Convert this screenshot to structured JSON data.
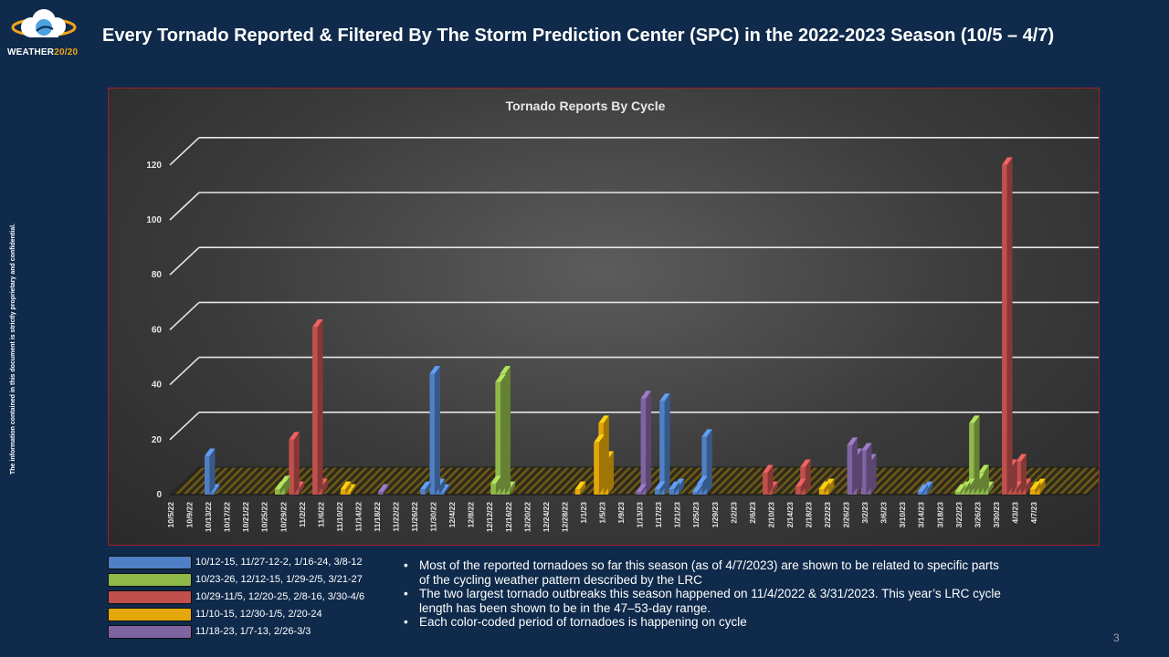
{
  "header": {
    "logo_word": "WEATHER",
    "logo_year": "20/20",
    "title": "Every Tornado Reported & Filtered By The Storm Prediction Center (SPC) in the 2022-2023 Season (10/5 – 4/7)"
  },
  "side_note": "The information contained in this document is strictly proprietary and confidential.",
  "colors": {
    "blue": "#4f7fc4",
    "green": "#8fb84a",
    "red": "#c0504d",
    "gold": "#e3a70b",
    "purple": "#8064a2"
  },
  "chart_data": {
    "type": "bar",
    "title": "Tornado Reports By Cycle",
    "ylim": [
      0,
      120
    ],
    "yticks": [
      0,
      20,
      40,
      60,
      80,
      100,
      120
    ],
    "grid": true,
    "x_labels": [
      "10/5/22",
      "10/9/22",
      "10/13/22",
      "10/17/22",
      "10/21/22",
      "10/25/22",
      "10/29/22",
      "11/2/22",
      "11/6/22",
      "11/10/22",
      "11/14/22",
      "11/18/22",
      "11/22/22",
      "11/26/22",
      "11/30/22",
      "12/4/22",
      "12/8/22",
      "12/12/22",
      "12/16/22",
      "12/20/22",
      "12/24/22",
      "12/28/22",
      "1/1/23",
      "1/5/23",
      "1/9/23",
      "1/13/23",
      "1/17/23",
      "1/21/23",
      "1/25/23",
      "1/29/23",
      "2/2/23",
      "2/6/23",
      "2/10/23",
      "2/14/23",
      "2/18/23",
      "2/22/23",
      "2/26/23",
      "3/2/23",
      "3/6/23",
      "3/10/23",
      "3/14/23",
      "3/18/23",
      "3/22/23",
      "3/26/23",
      "3/30/23",
      "4/3/23",
      "4/7/23"
    ],
    "series": [
      {
        "color_key": "blue",
        "points": [
          [
            "10/12/22",
            14
          ],
          [
            "10/13/22",
            1
          ],
          [
            "11/27/22",
            2
          ],
          [
            "11/29/22",
            44
          ],
          [
            "11/30/22",
            3
          ],
          [
            "12/1/22",
            1
          ],
          [
            "1/16/23",
            2
          ],
          [
            "1/17/23",
            34
          ],
          [
            "1/19/23",
            2
          ],
          [
            "1/20/23",
            3
          ],
          [
            "1/24/23",
            1
          ],
          [
            "1/25/23",
            4
          ],
          [
            "1/26/23",
            21
          ],
          [
            "3/13/23",
            1
          ],
          [
            "3/14/23",
            2
          ]
        ]
      },
      {
        "color_key": "green",
        "points": [
          [
            "10/27/22",
            2
          ],
          [
            "10/28/22",
            4
          ],
          [
            "12/12/22",
            4
          ],
          [
            "12/13/22",
            41
          ],
          [
            "12/14/22",
            44
          ],
          [
            "12/15/22",
            2
          ],
          [
            "3/21/23",
            1
          ],
          [
            "3/22/23",
            2
          ],
          [
            "3/23/23",
            3
          ],
          [
            "3/24/23",
            26
          ],
          [
            "3/25/23",
            5
          ],
          [
            "3/26/23",
            8
          ],
          [
            "3/27/23",
            2
          ]
        ]
      },
      {
        "color_key": "red",
        "points": [
          [
            "10/30/22",
            20
          ],
          [
            "10/31/22",
            2
          ],
          [
            "11/4/22",
            61
          ],
          [
            "11/5/22",
            3
          ],
          [
            "2/8/23",
            8
          ],
          [
            "2/9/23",
            2
          ],
          [
            "2/15/23",
            3
          ],
          [
            "2/16/23",
            10
          ],
          [
            "3/31/23",
            120
          ],
          [
            "4/1/23",
            10
          ],
          [
            "4/2/23",
            2
          ],
          [
            "4/3/23",
            12
          ],
          [
            "4/4/23",
            3
          ]
        ]
      },
      {
        "color_key": "gold",
        "points": [
          [
            "11/10/22",
            2
          ],
          [
            "11/11/22",
            1
          ],
          [
            "12/30/22",
            2
          ],
          [
            "1/3/23",
            19
          ],
          [
            "1/4/23",
            26
          ],
          [
            "1/5/23",
            13
          ],
          [
            "2/20/23",
            2
          ],
          [
            "2/21/23",
            3
          ],
          [
            "4/6/23",
            2
          ],
          [
            "4/7/23",
            3
          ]
        ]
      },
      {
        "color_key": "purple",
        "points": [
          [
            "11/18/22",
            1
          ],
          [
            "1/12/23",
            1
          ],
          [
            "1/13/23",
            35
          ],
          [
            "2/26/23",
            18
          ],
          [
            "2/27/23",
            14
          ],
          [
            "3/1/23",
            16
          ],
          [
            "3/2/23",
            12
          ]
        ]
      }
    ]
  },
  "legend": [
    {
      "color_key": "blue",
      "label": "10/12-15, 11/27-12-2, 1/16-24, 3/8-12"
    },
    {
      "color_key": "green",
      "label": "10/23-26, 12/12-15, 1/29-2/5, 3/21-27"
    },
    {
      "color_key": "red",
      "label": "10/29-11/5, 12/20-25, 2/8-16, 3/30-4/6"
    },
    {
      "color_key": "gold",
      "label": "11/10-15, 12/30-1/5, 2/20-24"
    },
    {
      "color_key": "purple",
      "label": "11/18-23, 1/7-13, 2/26-3/3"
    }
  ],
  "notes": [
    "Most of the reported tornadoes so far this season (as of 4/7/2023) are shown to be related to specific parts of the cycling weather pattern described by the LRC",
    "The two largest tornado outbreaks this season happened on 11/4/2022 & 3/31/2023. This year’s LRC cycle length has been shown to be in the 47–53-day range.",
    "Each color-coded period of tornadoes is happening on cycle"
  ],
  "page_number": "3"
}
